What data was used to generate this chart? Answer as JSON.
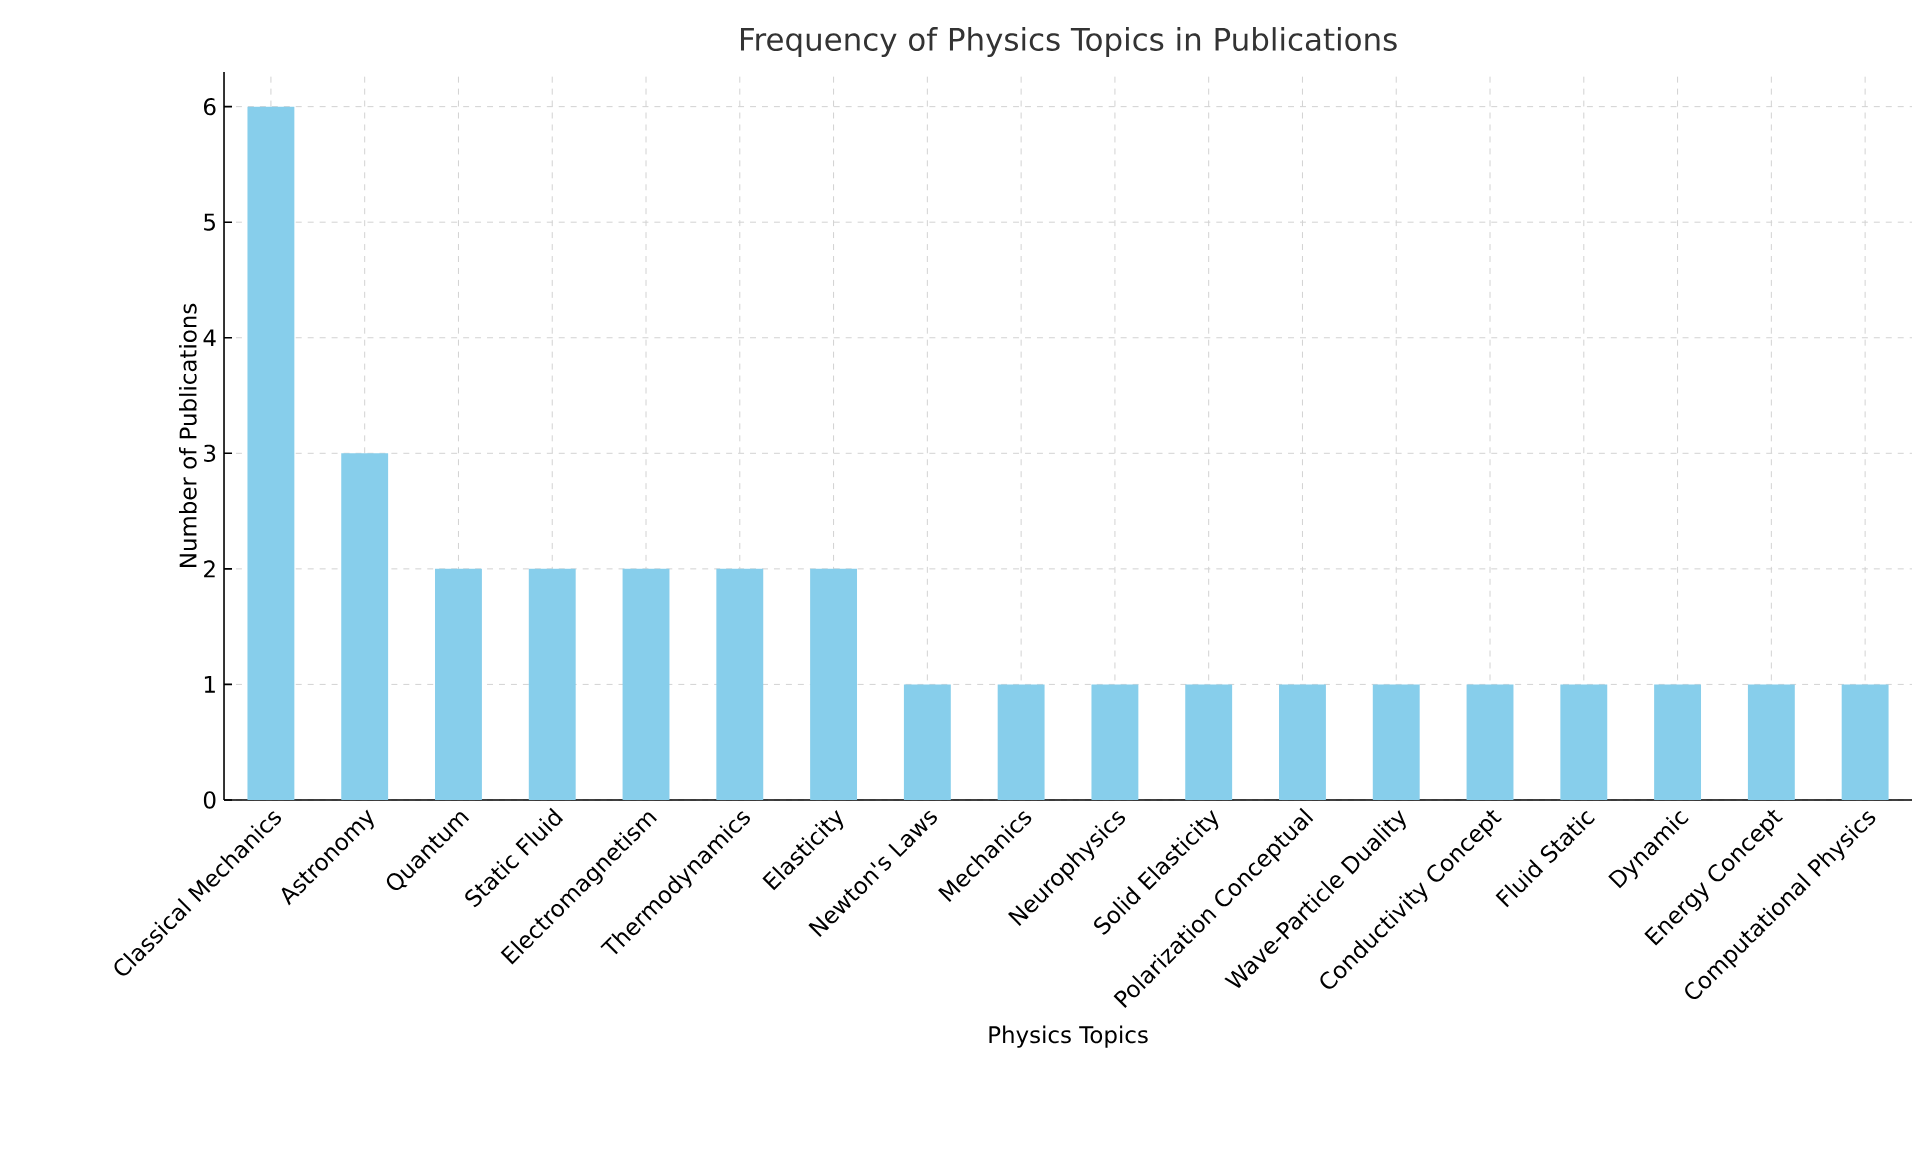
{
  "chart_data": {
    "type": "bar",
    "title": "Frequency of Physics Topics in Publications",
    "xlabel": "Physics Topics",
    "ylabel": "Number of Publications",
    "categories": [
      "Classical Mechanics",
      "Astronomy",
      "Quantum",
      "Static Fluid",
      "Electromagnetism",
      "Thermodynamics",
      "Elasticity",
      "Newton's Laws",
      "Mechanics",
      "Neurophysics",
      "Solid Elasticity",
      "Polarization Conceptual",
      "Wave-Particle Duality",
      "Conductivity Concept",
      "Fluid Static",
      "Dynamic",
      "Energy Concept",
      "Computational Physics"
    ],
    "values": [
      6,
      3,
      2,
      2,
      2,
      2,
      2,
      1,
      1,
      1,
      1,
      1,
      1,
      1,
      1,
      1,
      1,
      1
    ],
    "color": "#87ceeb",
    "ylim": [
      0,
      6.3
    ],
    "yticks": [
      0,
      1,
      2,
      3,
      4,
      5,
      6
    ],
    "grid": true
  }
}
